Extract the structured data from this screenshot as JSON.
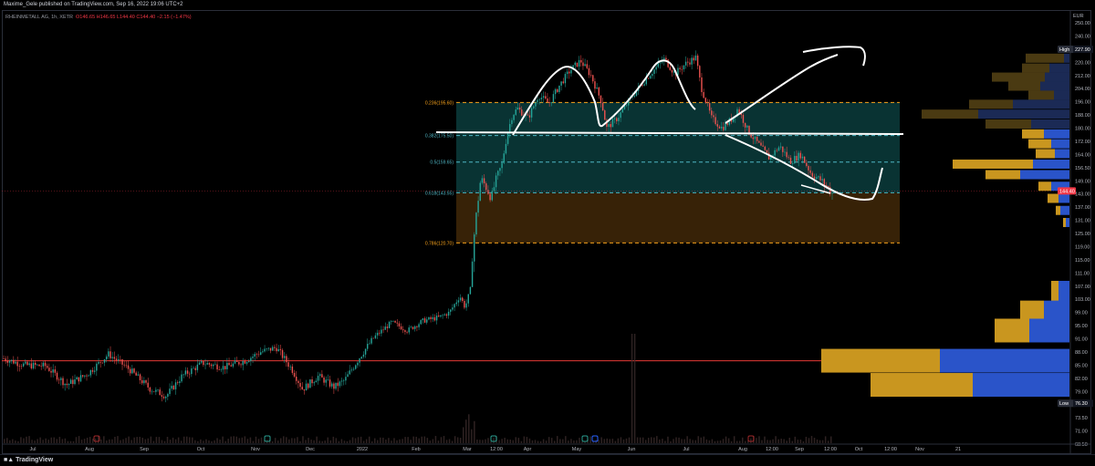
{
  "header": {
    "published_line": "Maxime_Gele published on TradingView.com, Sep 16, 2022 19:06 UTC+2"
  },
  "legend": {
    "symbol": "RHEINMETALL AG, 1h, XETR",
    "ohlc": "O146.65  H146.65  L144.40  C144.40  −2.15 (−1.47%)"
  },
  "currency": "EUR",
  "footer": {
    "brand": "TradingView"
  },
  "colors": {
    "candle_up": "#26a69a",
    "candle_down": "#ef5350",
    "fib_upper_zone": "#0b3c3c",
    "fib_lower_zone": "#3a2407",
    "fib_orange": "#f7a21b",
    "fib_teal": "#4fb6c4",
    "volume_up": "#2a54c9",
    "volume_down": "#c9961f",
    "horizontal_line": "#e53935",
    "drawing": "#ffffff"
  },
  "chart_data": {
    "type": "candlestick",
    "title": "RHEINMETALL AG, 1h, XETR",
    "currency": "EUR",
    "y_axis": {
      "ticks": [
        250.0,
        240.0,
        228.0,
        220.0,
        212.0,
        204.0,
        196.0,
        188.0,
        180.0,
        172.0,
        164.0,
        156.5,
        149.0,
        143.0,
        137.0,
        131.0,
        125.0,
        119.0,
        115.0,
        111.0,
        107.0,
        103.0,
        99.0,
        95.0,
        91.0,
        88.0,
        85.0,
        82.0,
        79.0,
        76.0,
        73.5,
        71.0,
        68.5
      ],
      "ylim": [
        68.0,
        255.0
      ]
    },
    "x_axis": {
      "ticks": [
        "Jul",
        "Aug",
        "Sep",
        "Oct",
        "Nov",
        "Dec",
        "2022",
        "Feb",
        "Mar",
        "12:00",
        "Apr",
        "May",
        "Jun",
        "Jul",
        "Aug",
        "12:00",
        "Sep",
        "12:00",
        "Oct",
        "12:00",
        "Nov",
        "21"
      ]
    },
    "price_labels": [
      {
        "text": "High",
        "value": 227.9
      },
      {
        "text": "144.40",
        "value": 144.4,
        "tag": "current"
      },
      {
        "text": "Low",
        "value": 76.3
      }
    ],
    "horizontal_line": {
      "value": 86.0
    },
    "fibonacci": [
      {
        "level": "0.236",
        "value": 195.6,
        "label": "0.236(195.60)"
      },
      {
        "level": "0.382",
        "value": 175.5,
        "label": "0.382(175.50)"
      },
      {
        "level": "0.5",
        "value": 159.65,
        "label": "0.5(159.65)"
      },
      {
        "level": "0.618",
        "value": 143.55,
        "label": "0.618(143.55)"
      },
      {
        "level": "0.786",
        "value": 120.7,
        "label": "0.786(120.70)"
      }
    ],
    "price_path": [
      [
        0.0,
        86.5
      ],
      [
        0.02,
        85.0
      ],
      [
        0.04,
        84.8
      ],
      [
        0.06,
        80.5
      ],
      [
        0.08,
        83.0
      ],
      [
        0.1,
        87.5
      ],
      [
        0.12,
        84.0
      ],
      [
        0.14,
        79.5
      ],
      [
        0.155,
        78.0
      ],
      [
        0.17,
        82.5
      ],
      [
        0.19,
        85.5
      ],
      [
        0.21,
        84.5
      ],
      [
        0.23,
        86.0
      ],
      [
        0.245,
        88.0
      ],
      [
        0.26,
        89.0
      ],
      [
        0.275,
        84.0
      ],
      [
        0.285,
        79.5
      ],
      [
        0.3,
        82.5
      ],
      [
        0.315,
        80.0
      ],
      [
        0.325,
        81.5
      ],
      [
        0.34,
        87.0
      ],
      [
        0.355,
        92.0
      ],
      [
        0.37,
        96.0
      ],
      [
        0.385,
        93.5
      ],
      [
        0.4,
        96.5
      ],
      [
        0.415,
        97.5
      ],
      [
        0.425,
        99.0
      ],
      [
        0.435,
        104.0
      ],
      [
        0.44,
        100.5
      ],
      [
        0.445,
        106.0
      ],
      [
        0.45,
        131.0
      ],
      [
        0.455,
        150.5
      ],
      [
        0.46,
        146.0
      ],
      [
        0.465,
        141.0
      ],
      [
        0.47,
        151.0
      ],
      [
        0.475,
        158.0
      ],
      [
        0.48,
        176.0
      ],
      [
        0.485,
        188.0
      ],
      [
        0.49,
        192.0
      ],
      [
        0.5,
        186.0
      ],
      [
        0.51,
        200.0
      ],
      [
        0.52,
        195.0
      ],
      [
        0.53,
        206.0
      ],
      [
        0.54,
        215.0
      ],
      [
        0.55,
        221.0
      ],
      [
        0.56,
        212.0
      ],
      [
        0.57,
        196.0
      ],
      [
        0.575,
        180.0
      ],
      [
        0.585,
        186.0
      ],
      [
        0.6,
        200.0
      ],
      [
        0.615,
        212.0
      ],
      [
        0.63,
        222.0
      ],
      [
        0.64,
        213.0
      ],
      [
        0.65,
        219.0
      ],
      [
        0.66,
        223.0
      ],
      [
        0.665,
        205.0
      ],
      [
        0.675,
        186.0
      ],
      [
        0.685,
        180.0
      ],
      [
        0.695,
        186.0
      ],
      [
        0.7,
        192.0
      ],
      [
        0.71,
        178.0
      ],
      [
        0.72,
        170.0
      ],
      [
        0.73,
        162.0
      ],
      [
        0.74,
        169.0
      ],
      [
        0.75,
        160.0
      ],
      [
        0.76,
        164.0
      ],
      [
        0.77,
        153.0
      ],
      [
        0.78,
        149.0
      ],
      [
        0.79,
        143.5
      ]
    ],
    "volume_profile_upper": [
      {
        "price": 222.5,
        "up": 6,
        "down": 42
      },
      {
        "price": 216.5,
        "up": 22,
        "down": 30
      },
      {
        "price": 211.0,
        "up": 27,
        "down": 58
      },
      {
        "price": 205.5,
        "up": 32,
        "down": 35
      },
      {
        "price": 200.0,
        "up": 17,
        "down": 28
      },
      {
        "price": 194.5,
        "up": 62,
        "down": 48
      },
      {
        "price": 188.5,
        "up": 100,
        "down": 62
      },
      {
        "price": 182.5,
        "up": 42,
        "down": 50
      },
      {
        "price": 176.5,
        "up": 28,
        "down": 24
      },
      {
        "price": 170.5,
        "up": 20,
        "down": 25
      },
      {
        "price": 164.5,
        "up": 16,
        "down": 21
      },
      {
        "price": 158.5,
        "up": 40,
        "down": 88
      },
      {
        "price": 152.5,
        "up": 54,
        "down": 38
      },
      {
        "price": 146.5,
        "up": 20,
        "down": 14
      },
      {
        "price": 141.0,
        "up": 12,
        "down": 12
      },
      {
        "price": 135.5,
        "up": 10,
        "down": 5
      },
      {
        "price": 130.0,
        "up": 4,
        "down": 3
      }
    ],
    "volume_profile_lower": [
      {
        "price": 105.0,
        "up": 12,
        "down": 8
      },
      {
        "price": 99.0,
        "up": 28,
        "down": 26
      },
      {
        "price": 93.5,
        "up": 44,
        "down": 38
      },
      {
        "price": 86.0,
        "up": 142,
        "down": 130
      },
      {
        "price": 80.5,
        "up": 106,
        "down": 112
      }
    ]
  }
}
